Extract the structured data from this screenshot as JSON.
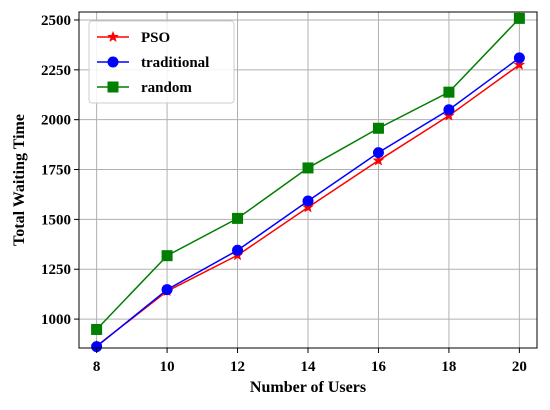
{
  "chart_data": {
    "type": "line",
    "title": "",
    "xlabel": "Number of Users",
    "ylabel": "Total Waiting Time",
    "x": [
      8,
      10,
      12,
      14,
      16,
      18,
      20
    ],
    "xticks": [
      "8",
      "10",
      "12",
      "14",
      "16",
      "18",
      "20"
    ],
    "yticks": [
      "1000",
      "1250",
      "1500",
      "1750",
      "2000",
      "2250",
      "2500"
    ],
    "xlim": [
      7.5,
      20.5
    ],
    "ylim": [
      855,
      2540
    ],
    "grid": true,
    "legend_position": "top-left",
    "series": [
      {
        "name": "PSO",
        "color": "#ff0000",
        "marker": "star",
        "values": [
          865,
          1140,
          1320,
          1560,
          1795,
          2020,
          2275
        ]
      },
      {
        "name": "traditional",
        "color": "#0000ff",
        "marker": "circle",
        "values": [
          862,
          1148,
          1345,
          1592,
          1835,
          2050,
          2310
        ]
      },
      {
        "name": "random",
        "color": "#007f00",
        "marker": "square",
        "values": [
          948,
          1318,
          1505,
          1758,
          1957,
          2138,
          2508
        ]
      }
    ]
  }
}
